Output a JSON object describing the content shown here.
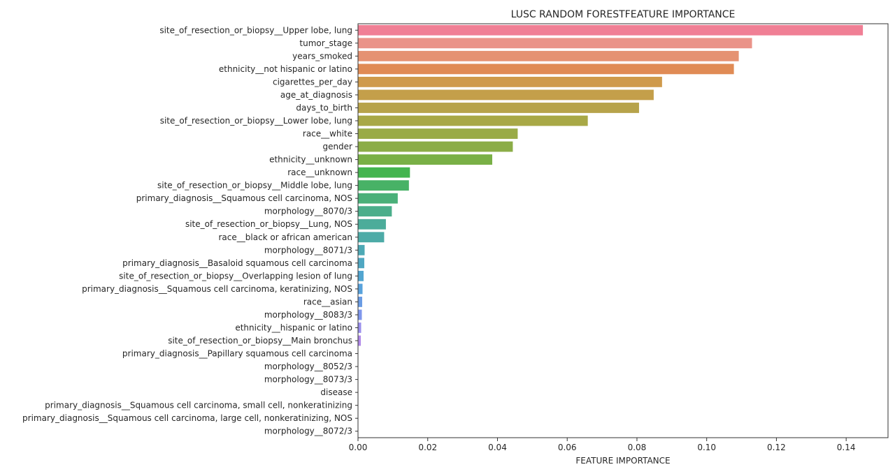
{
  "chart_data": {
    "type": "bar",
    "orientation": "horizontal",
    "title": "LUSC RANDOM FORESTFEATURE IMPORTANCE",
    "xlabel": "FEATURE IMPORTANCE",
    "ylabel": "",
    "xlim": [
      0,
      0.152
    ],
    "xticks": [
      "0.00",
      "0.02",
      "0.04",
      "0.06",
      "0.08",
      "0.10",
      "0.12",
      "0.14"
    ],
    "xtick_values": [
      0,
      0.02,
      0.04,
      0.06,
      0.08,
      0.1,
      0.12,
      0.14
    ],
    "grid": false,
    "legend": "none",
    "categories": [
      "site_of_resection_or_biopsy__Upper lobe, lung",
      "tumor_stage",
      "years_smoked",
      "ethnicity__not hispanic or latino",
      "cigarettes_per_day",
      "age_at_diagnosis",
      "days_to_birth",
      "site_of_resection_or_biopsy__Lower lobe, lung",
      "race__white",
      "gender",
      "ethnicity__unknown",
      "race__unknown",
      "site_of_resection_or_biopsy__Middle lobe, lung",
      "primary_diagnosis__Squamous cell carcinoma, NOS",
      "morphology__8070/3",
      "site_of_resection_or_biopsy__Lung, NOS",
      "race__black or african american",
      "morphology__8071/3",
      "primary_diagnosis__Basaloid squamous cell carcinoma",
      "site_of_resection_or_biopsy__Overlapping lesion of lung",
      "primary_diagnosis__Squamous cell carcinoma, keratinizing, NOS",
      "race__asian",
      "morphology__8083/3",
      "ethnicity__hispanic or latino",
      "site_of_resection_or_biopsy__Main bronchus",
      "primary_diagnosis__Papillary squamous cell carcinoma",
      "morphology__8052/3",
      "morphology__8073/3",
      "disease",
      "primary_diagnosis__Squamous cell carcinoma, small cell, nonkeratinizing",
      "primary_diagnosis__Squamous cell carcinoma, large cell, nonkeratinizing, NOS",
      "morphology__8072/3"
    ],
    "values": [
      0.1448,
      0.113,
      0.1092,
      0.1078,
      0.0872,
      0.0848,
      0.0806,
      0.0659,
      0.0458,
      0.0444,
      0.0385,
      0.0149,
      0.0146,
      0.0114,
      0.0097,
      0.008,
      0.0075,
      0.0019,
      0.0018,
      0.0016,
      0.0013,
      0.0012,
      0.0011,
      0.0009,
      0.0008,
      0.0001,
      0.0001,
      0.0001,
      0.0001,
      0.0001,
      0.0001,
      0.0001
    ],
    "colors": [
      "#f07f95",
      "#ea9389",
      "#e59272",
      "#e08b55",
      "#cf9a4b",
      "#c49f4a",
      "#b7a34a",
      "#a8a846",
      "#9aab47",
      "#8bad47",
      "#79b046",
      "#44b54f",
      "#48b266",
      "#4ab079",
      "#4bae8b",
      "#4cac9a",
      "#4daba7",
      "#4da9b5",
      "#4fa7c2",
      "#52a5d0",
      "#58a2dc",
      "#6a9ce4",
      "#7f97ec",
      "#9a8fec",
      "#b088e8",
      "#c384e0",
      "#d080d5",
      "#dc7ec9",
      "#e67cbe",
      "#ec7bb2",
      "#ef7ca5",
      "#f07d98"
    ]
  }
}
